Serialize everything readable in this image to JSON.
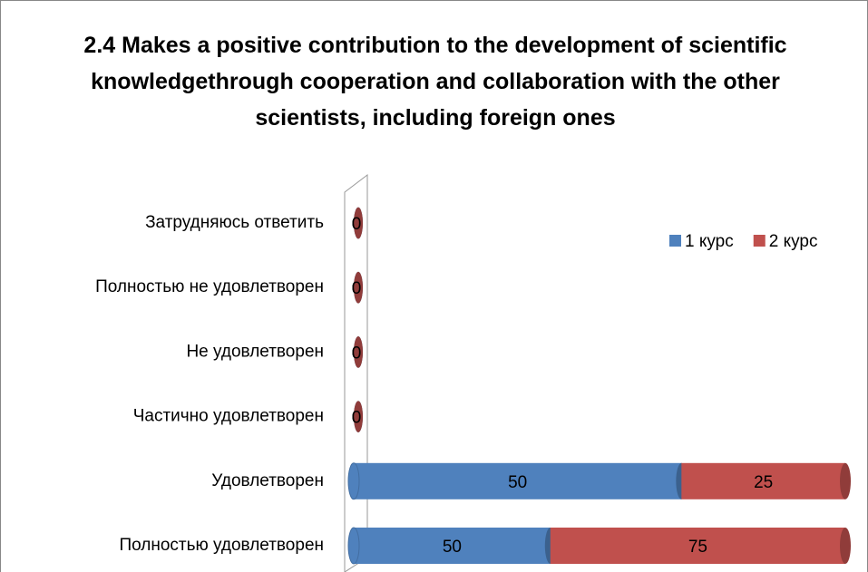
{
  "chart_data": {
    "type": "stacked_percent_bar_horizontal",
    "title": "2.4 Makes a positive contribution to the development of scientific knowledgethrough cooperation and collaboration with the other scientists, including foreign ones",
    "categories": [
      "Затрудняюсь ответить",
      "Полностью не удовлетворен",
      "Не удовлетворен",
      "Частично удовлетворен",
      "Удовлетворен",
      "Полностью удовлетворен"
    ],
    "series": [
      {
        "name": "1 курс",
        "color": "#4f81bd",
        "values": [
          0,
          0,
          0,
          0,
          50,
          50
        ]
      },
      {
        "name": "2 курс",
        "color": "#c0504d",
        "values": [
          0,
          0,
          0,
          0,
          25,
          75
        ]
      }
    ],
    "legend": "top-right"
  }
}
